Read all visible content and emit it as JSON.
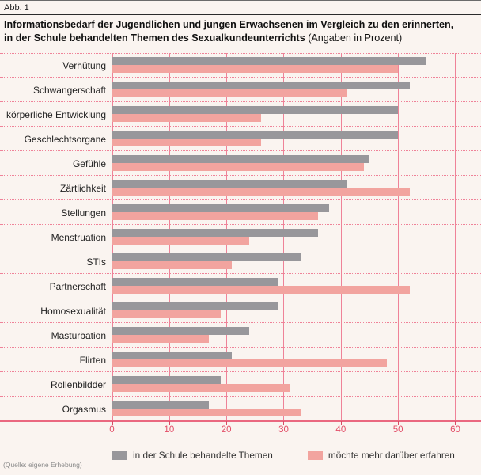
{
  "header": {
    "figure_label": "Abb. 1",
    "title_line1": "Informationsbedarf der Jugendlichen und jungen Erwachsenen im Vergleich zu den erinnerten,",
    "title_line2_bold": "in der Schule behandelten Themen des Sexualkundeunterrichts",
    "title_suffix": "(Angaben in Prozent)"
  },
  "chart_data": {
    "type": "bar",
    "orientation": "horizontal",
    "title": "Informationsbedarf der Jugendlichen und jungen Erwachsenen im Vergleich zu den erinnerten, in der Schule behandelten Themen des Sexualkundeunterrichts (Angaben in Prozent)",
    "categories": [
      "Verhütung",
      "Schwangerschaft",
      "körperliche Entwicklung",
      "Geschlechtsorgane",
      "Gefühle",
      "Zärtlichkeit",
      "Stellungen",
      "Menstruation",
      "STIs",
      "Partnerschaft",
      "Homosexualität",
      "Masturbation",
      "Flirten",
      "Rollenbildder",
      "Orgasmus"
    ],
    "series": [
      {
        "name": "in der Schule behandelte Themen",
        "color": "#98979b",
        "values": [
          55,
          52,
          50,
          50,
          45,
          41,
          38,
          36,
          33,
          29,
          29,
          24,
          21,
          19,
          17
        ]
      },
      {
        "name": "möchte mehr darüber erfahren",
        "color": "#f2a49f",
        "values": [
          50,
          41,
          26,
          26,
          44,
          52,
          36,
          24,
          21,
          52,
          19,
          17,
          48,
          31,
          33
        ]
      }
    ],
    "x_ticks": [
      0,
      10,
      20,
      30,
      40,
      50,
      60
    ],
    "xlim": [
      0,
      60
    ],
    "grid": true,
    "legend_position": "bottom"
  },
  "footer": {
    "source": "(Quelle: eigene Erhebung)"
  },
  "colors": {
    "background": "#faf4f0",
    "bar_gray": "#98979b",
    "bar_pink": "#f2a49f",
    "grid_pink": "#ef8298",
    "axis_pink": "#ea6880",
    "tick_red": "#e34e68"
  }
}
